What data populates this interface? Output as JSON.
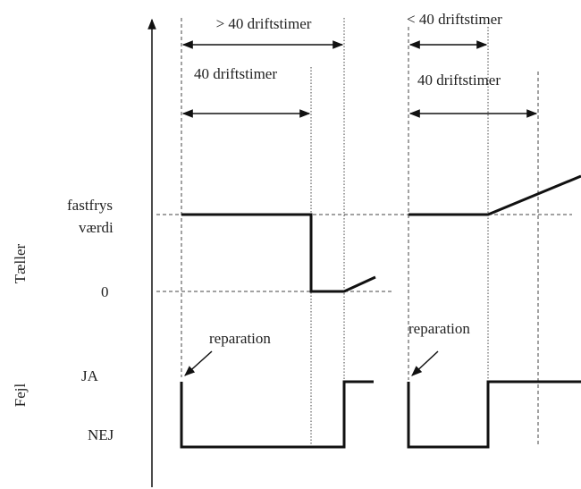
{
  "labels": {
    "left_top": "> 40 driftstimer",
    "left_mid": "40 driftstimer",
    "right_top": "< 40 driftstimer",
    "right_mid": "40 driftstimer"
  },
  "counter": {
    "axis_label": "Tæller",
    "freeze_line1": "fastfrys",
    "freeze_line2": "værdi",
    "zero": "0"
  },
  "fault": {
    "axis_label": "Fejl",
    "yes": "JA",
    "no": "NEJ"
  },
  "repair": [
    "reparation",
    "reparation"
  ]
}
